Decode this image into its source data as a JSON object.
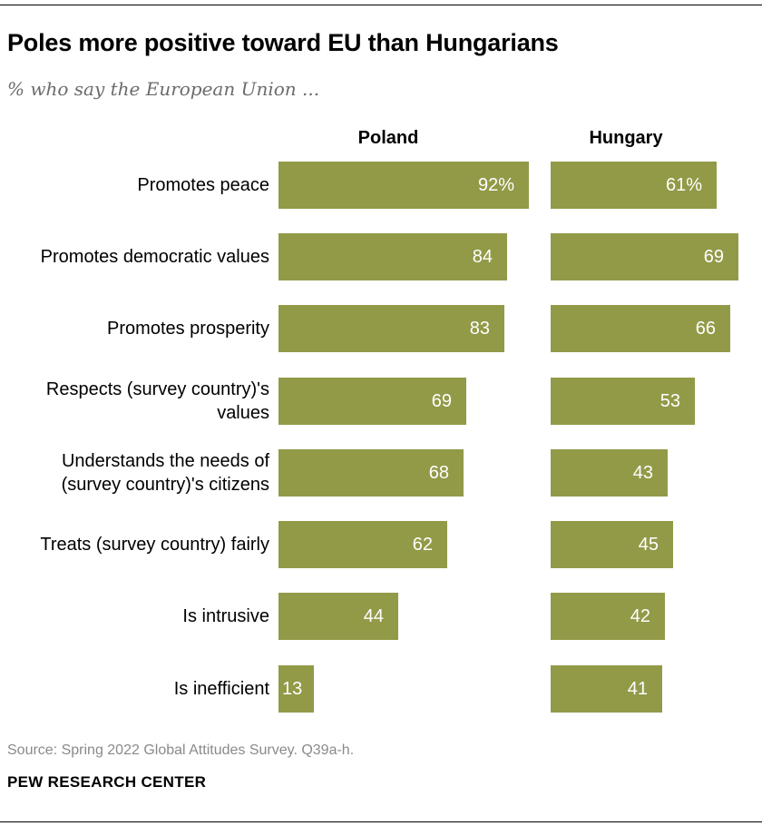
{
  "title": "Poles more positive toward EU than Hungarians",
  "subtitle": "% who say the European Union ...",
  "source": "Source: Spring 2022 Global Attitudes Survey. Q39a-h.",
  "brand": "PEW RESEARCH CENTER",
  "colors": {
    "bar": "#929a48",
    "bar_label": "#ffffff"
  },
  "chart_data": {
    "type": "bar",
    "orientation": "horizontal",
    "categories": [
      [
        "Promotes peace"
      ],
      [
        "Promotes democratic values"
      ],
      [
        "Promotes prosperity"
      ],
      [
        "Respects (survey country)'s",
        "values"
      ],
      [
        "Understands the needs of",
        "(survey country)'s citizens"
      ],
      [
        "Treats (survey country) fairly"
      ],
      [
        "Is intrusive"
      ],
      [
        "Is inefficient"
      ]
    ],
    "series": [
      {
        "name": "Poland",
        "values": [
          92,
          84,
          83,
          69,
          68,
          62,
          44,
          13
        ],
        "labels": [
          "92%",
          "84",
          "83",
          "69",
          "68",
          "62",
          "44",
          "13"
        ]
      },
      {
        "name": "Hungary",
        "values": [
          61,
          69,
          66,
          53,
          43,
          45,
          42,
          41
        ],
        "labels": [
          "61%",
          "69",
          "66",
          "53",
          "43",
          "45",
          "42",
          "41"
        ]
      }
    ],
    "xlim": [
      0,
      100
    ],
    "grid": false
  }
}
